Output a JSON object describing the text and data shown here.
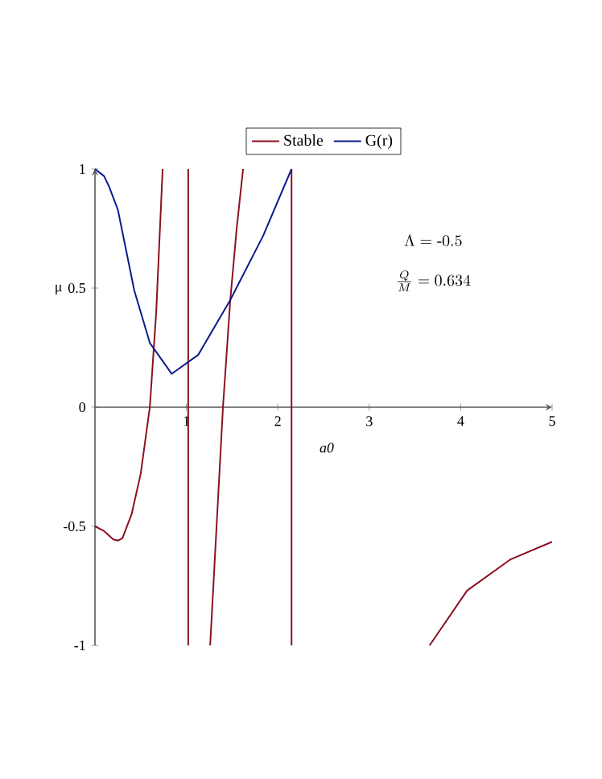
{
  "chart_data": {
    "type": "line",
    "xlabel": "a0",
    "ylabel": "μ",
    "xlim": [
      0,
      5
    ],
    "ylim": [
      -1,
      1
    ],
    "xticks": [
      1,
      2,
      3,
      4,
      5
    ],
    "yticks": [
      -1,
      -0.5,
      0,
      0.5,
      1
    ],
    "legend": "top",
    "grid": false,
    "marker": "none",
    "line_style": "solid",
    "annotations": [
      "\\Lambda = \\text{-}0.5",
      "\\frac{Q}{M} = 0.634"
    ],
    "series": [
      {
        "name": "Stable",
        "color": "#8b1020",
        "x": [
          0,
          0.1,
          0.2,
          0.25,
          0.3,
          0.4,
          0.5,
          0.6,
          0.67,
          0.74,
          null,
          1.02,
          1.02,
          null,
          1.26,
          1.33,
          1.4,
          1.48,
          1.55,
          1.62,
          null,
          2.15,
          2.15,
          null,
          3.66,
          4.07,
          4.54,
          5
        ],
        "values": [
          -0.5,
          -0.52,
          -0.555,
          -0.56,
          -0.55,
          -0.45,
          -0.28,
          0,
          0.4,
          1,
          null,
          -1,
          1,
          null,
          -1,
          -0.5,
          0,
          0.45,
          0.75,
          1,
          null,
          -1,
          1,
          null,
          -1,
          -0.77,
          -0.64,
          -0.565
        ]
      },
      {
        "name": "G(r)",
        "color": "#0d1a8c",
        "x": [
          0,
          0.1,
          0.15,
          0.25,
          0.43,
          0.6,
          0.84,
          1.13,
          1.48,
          1.84,
          2.15
        ],
        "values": [
          1,
          0.97,
          0.93,
          0.83,
          0.49,
          0.27,
          0.14,
          0.22,
          0.45,
          0.72,
          1
        ]
      }
    ]
  }
}
